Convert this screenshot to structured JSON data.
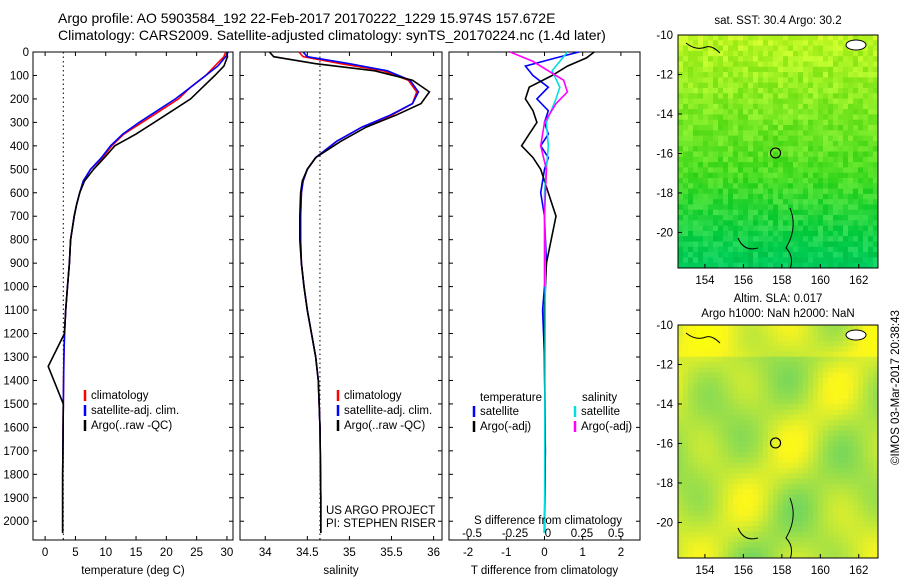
{
  "header": {
    "line1": "Argo profile: AO 5903584_192 22-Feb-2017 20170222_1229 15.974S 157.672E",
    "line2": "Climatology: CARS2009. Satellite-adjusted climatology: synTS_20170224.nc (1.4d later)"
  },
  "colors": {
    "climatology": "#ff0000",
    "satellite": "#0000ff",
    "argo": "#000000",
    "salinity_satellite": "#00e0e0",
    "salinity_argo": "#ff00ff"
  },
  "chart_data": [
    {
      "type": "line",
      "panel": "temperature",
      "xlabel": "temperature (deg C)",
      "xlim": [
        -2,
        31
      ],
      "xticks": [
        "0",
        "5",
        "10",
        "15",
        "20",
        "25",
        "30"
      ],
      "ylim": [
        2080,
        0
      ],
      "yticks": [
        "0",
        "100",
        "200",
        "300",
        "400",
        "500",
        "600",
        "700",
        "800",
        "900",
        "1000",
        "1100",
        "1200",
        "1300",
        "1400",
        "1500",
        "1600",
        "1700",
        "1800",
        "1900",
        "2000"
      ],
      "reference_line_x": 3,
      "legend": [
        "climatology",
        "satellite-adj. clim.",
        "Argo(..raw -QC)"
      ],
      "series": [
        {
          "name": "climatology",
          "color_key": "climatology",
          "x": [
            29.8,
            29.5,
            28,
            26.5,
            24,
            22,
            19,
            16,
            13,
            11,
            9.5,
            7.5,
            6.3,
            5.7,
            5.2,
            4.8,
            4.5,
            4.2,
            4.0,
            3.7,
            3.4,
            3.2,
            3.1,
            3.0,
            2.9,
            2.9
          ],
          "y": [
            0,
            20,
            60,
            100,
            150,
            200,
            250,
            300,
            350,
            400,
            450,
            500,
            550,
            600,
            650,
            700,
            750,
            800,
            900,
            1000,
            1100,
            1200,
            1300,
            1500,
            1800,
            2050
          ]
        },
        {
          "name": "satellite-adj. clim.",
          "color_key": "satellite",
          "x": [
            30.2,
            29.8,
            28.5,
            26.5,
            24,
            21.5,
            18.5,
            15.5,
            12.8,
            10.8,
            9.3,
            7.5,
            6.3,
            5.7,
            5.2,
            4.8,
            4.5,
            4.2,
            4.0,
            3.7,
            3.4,
            3.2,
            3.1,
            3.0,
            2.9,
            2.9
          ],
          "y": [
            0,
            20,
            60,
            100,
            150,
            200,
            250,
            300,
            350,
            400,
            450,
            500,
            550,
            600,
            650,
            700,
            750,
            800,
            900,
            1000,
            1100,
            1200,
            1300,
            1500,
            1800,
            2050
          ]
        },
        {
          "name": "Argo(..raw -QC)",
          "color_key": "argo",
          "x": [
            30.0,
            30.1,
            29.5,
            28,
            26,
            24,
            21,
            18,
            15,
            11.5,
            9.8,
            8,
            6.5,
            5.7,
            5.2,
            4.8,
            4.5,
            4.2,
            4.0,
            3.7,
            3.4,
            3.2,
            0.5,
            3.0,
            2.9,
            2.9
          ],
          "y": [
            0,
            20,
            60,
            100,
            150,
            200,
            250,
            300,
            350,
            400,
            450,
            500,
            550,
            600,
            650,
            700,
            750,
            800,
            900,
            1000,
            1100,
            1200,
            1340,
            1500,
            1800,
            2050
          ]
        }
      ]
    },
    {
      "type": "line",
      "panel": "salinity",
      "xlabel": "salinity",
      "xlim": [
        33.7,
        36.1
      ],
      "xticks": [
        "34",
        "34.5",
        "35",
        "35.5",
        "36"
      ],
      "ylim": [
        2080,
        0
      ],
      "reference_line_x": 34.65,
      "legend": [
        "climatology",
        "satellite-adj. clim.",
        "Argo(..raw -QC)"
      ],
      "annotation": [
        "US ARGO PROJECT",
        "PI: STEPHEN RISER"
      ],
      "series": [
        {
          "name": "climatology",
          "color_key": "climatology",
          "x": [
            34.4,
            34.45,
            34.9,
            35.4,
            35.7,
            35.8,
            35.75,
            35.5,
            35.15,
            34.85,
            34.6,
            34.5,
            34.45,
            34.43,
            34.42,
            34.42,
            34.43,
            34.46,
            34.5,
            34.55,
            34.6,
            34.63,
            34.65,
            34.66,
            34.66
          ],
          "y": [
            0,
            20,
            50,
            80,
            120,
            170,
            220,
            270,
            320,
            380,
            450,
            500,
            550,
            600,
            700,
            800,
            900,
            1000,
            1100,
            1200,
            1300,
            1400,
            1600,
            1900,
            2050
          ]
        },
        {
          "name": "satellite-adj. clim.",
          "color_key": "satellite",
          "x": [
            34.45,
            34.5,
            35.0,
            35.45,
            35.72,
            35.82,
            35.75,
            35.48,
            35.15,
            34.85,
            34.6,
            34.5,
            34.45,
            34.43,
            34.42,
            34.42,
            34.43,
            34.46,
            34.5,
            34.55,
            34.6,
            34.63,
            34.65,
            34.66,
            34.66
          ],
          "y": [
            0,
            20,
            50,
            80,
            120,
            170,
            220,
            270,
            320,
            380,
            450,
            500,
            550,
            600,
            700,
            800,
            900,
            1000,
            1100,
            1200,
            1300,
            1400,
            1600,
            1900,
            2050
          ]
        },
        {
          "name": "Argo(..raw -QC)",
          "color_key": "argo",
          "x": [
            34.05,
            34.1,
            34.6,
            35.3,
            35.75,
            35.95,
            35.85,
            35.55,
            35.2,
            34.9,
            34.6,
            34.5,
            34.44,
            34.42,
            34.41,
            34.41,
            34.43,
            34.46,
            34.5,
            34.55,
            34.6,
            34.63,
            34.65,
            34.66,
            34.66
          ],
          "y": [
            0,
            20,
            50,
            80,
            120,
            170,
            220,
            270,
            320,
            380,
            450,
            500,
            550,
            600,
            700,
            800,
            900,
            1000,
            1100,
            1200,
            1300,
            1400,
            1600,
            1900,
            2050
          ]
        }
      ]
    },
    {
      "type": "line",
      "panel": "difference",
      "xlabel": "T difference from climatology",
      "xlim": [
        -2.5,
        2.5
      ],
      "xticks": [
        "-2",
        "-1",
        "0",
        "1",
        "2"
      ],
      "top_axis_label": "S difference from climatology",
      "top_xticks": [
        "-0.5",
        "-0.25",
        "0",
        "0.25",
        "0.5"
      ],
      "ylim": [
        2080,
        0
      ],
      "legend_headers": [
        "temperature",
        "salinity"
      ],
      "legend": [
        "satellite",
        "Argo(-adj)",
        "satellite",
        "Argo(-adj)"
      ],
      "series": [
        {
          "name": "satellite",
          "group": "temperature",
          "color_key": "satellite",
          "x": [
            0.9,
            0.3,
            -0.5,
            -0.3,
            0.1,
            -0.2,
            0.1,
            0.0,
            0.1,
            -0.1,
            0.1,
            0.0,
            -0.1,
            0.0,
            0.05,
            -0.05,
            0.0,
            0.02,
            0.0
          ],
          "y": [
            0,
            25,
            60,
            100,
            150,
            200,
            250,
            300,
            350,
            400,
            450,
            500,
            600,
            700,
            900,
            1100,
            1300,
            1700,
            2050
          ]
        },
        {
          "name": "Argo(-adj)",
          "group": "temperature",
          "color_key": "argo",
          "x": [
            1.3,
            1.1,
            0.6,
            0.2,
            -0.4,
            -0.5,
            -0.3,
            -0.2,
            -0.4,
            -0.6,
            -0.3,
            -0.1,
            0.1,
            0.3,
            0.05,
            0.0,
            0.0,
            0.02,
            0.0
          ],
          "y": [
            0,
            25,
            60,
            100,
            150,
            200,
            250,
            300,
            350,
            400,
            450,
            500,
            600,
            700,
            900,
            1100,
            1300,
            1700,
            2050
          ]
        },
        {
          "name": "satellite",
          "group": "salinity",
          "color_key": "salinity_satellite",
          "x": [
            0.6,
            0.4,
            0.2,
            0.4,
            0.3,
            0.05,
            0.1,
            0.0,
            0.02,
            0.0
          ],
          "y": [
            0,
            40,
            80,
            150,
            200,
            300,
            400,
            600,
            1000,
            2050
          ]
        },
        {
          "name": "Argo(-adj)",
          "group": "salinity",
          "color_key": "salinity_argo",
          "x": [
            -0.9,
            -0.3,
            0.1,
            0.5,
            0.6,
            0.3,
            0.0,
            -0.1,
            0.05,
            0.0,
            0.0
          ],
          "y": [
            0,
            40,
            80,
            120,
            170,
            220,
            300,
            400,
            500,
            700,
            1000
          ]
        }
      ]
    },
    {
      "type": "heatmap",
      "panel": "sst-map",
      "title": "sat. SST: 30.4  Argo: 30.2",
      "xticks": [
        "154",
        "156",
        "158",
        "160",
        "162"
      ],
      "yticks": [
        "-10",
        "-12",
        "-14",
        "-16",
        "-18",
        "-20"
      ],
      "xlim": [
        152.6,
        163.0
      ],
      "ylim": [
        -21.8,
        -10
      ],
      "argo_position": [
        157.672,
        -15.974
      ]
    },
    {
      "type": "heatmap",
      "panel": "sla-map",
      "title_lines": [
        "Altim. SLA: 0.017",
        "Argo h1000: NaN h2000: NaN"
      ],
      "xticks": [
        "154",
        "156",
        "158",
        "160",
        "162"
      ],
      "yticks": [
        "-10",
        "-12",
        "-14",
        "-16",
        "-18",
        "-20"
      ],
      "xlim": [
        152.6,
        163.0
      ],
      "ylim": [
        -21.8,
        -10
      ],
      "argo_position": [
        157.672,
        -15.974
      ]
    }
  ],
  "credit": "©IMOS 03-Mar-2017 20:38:43"
}
